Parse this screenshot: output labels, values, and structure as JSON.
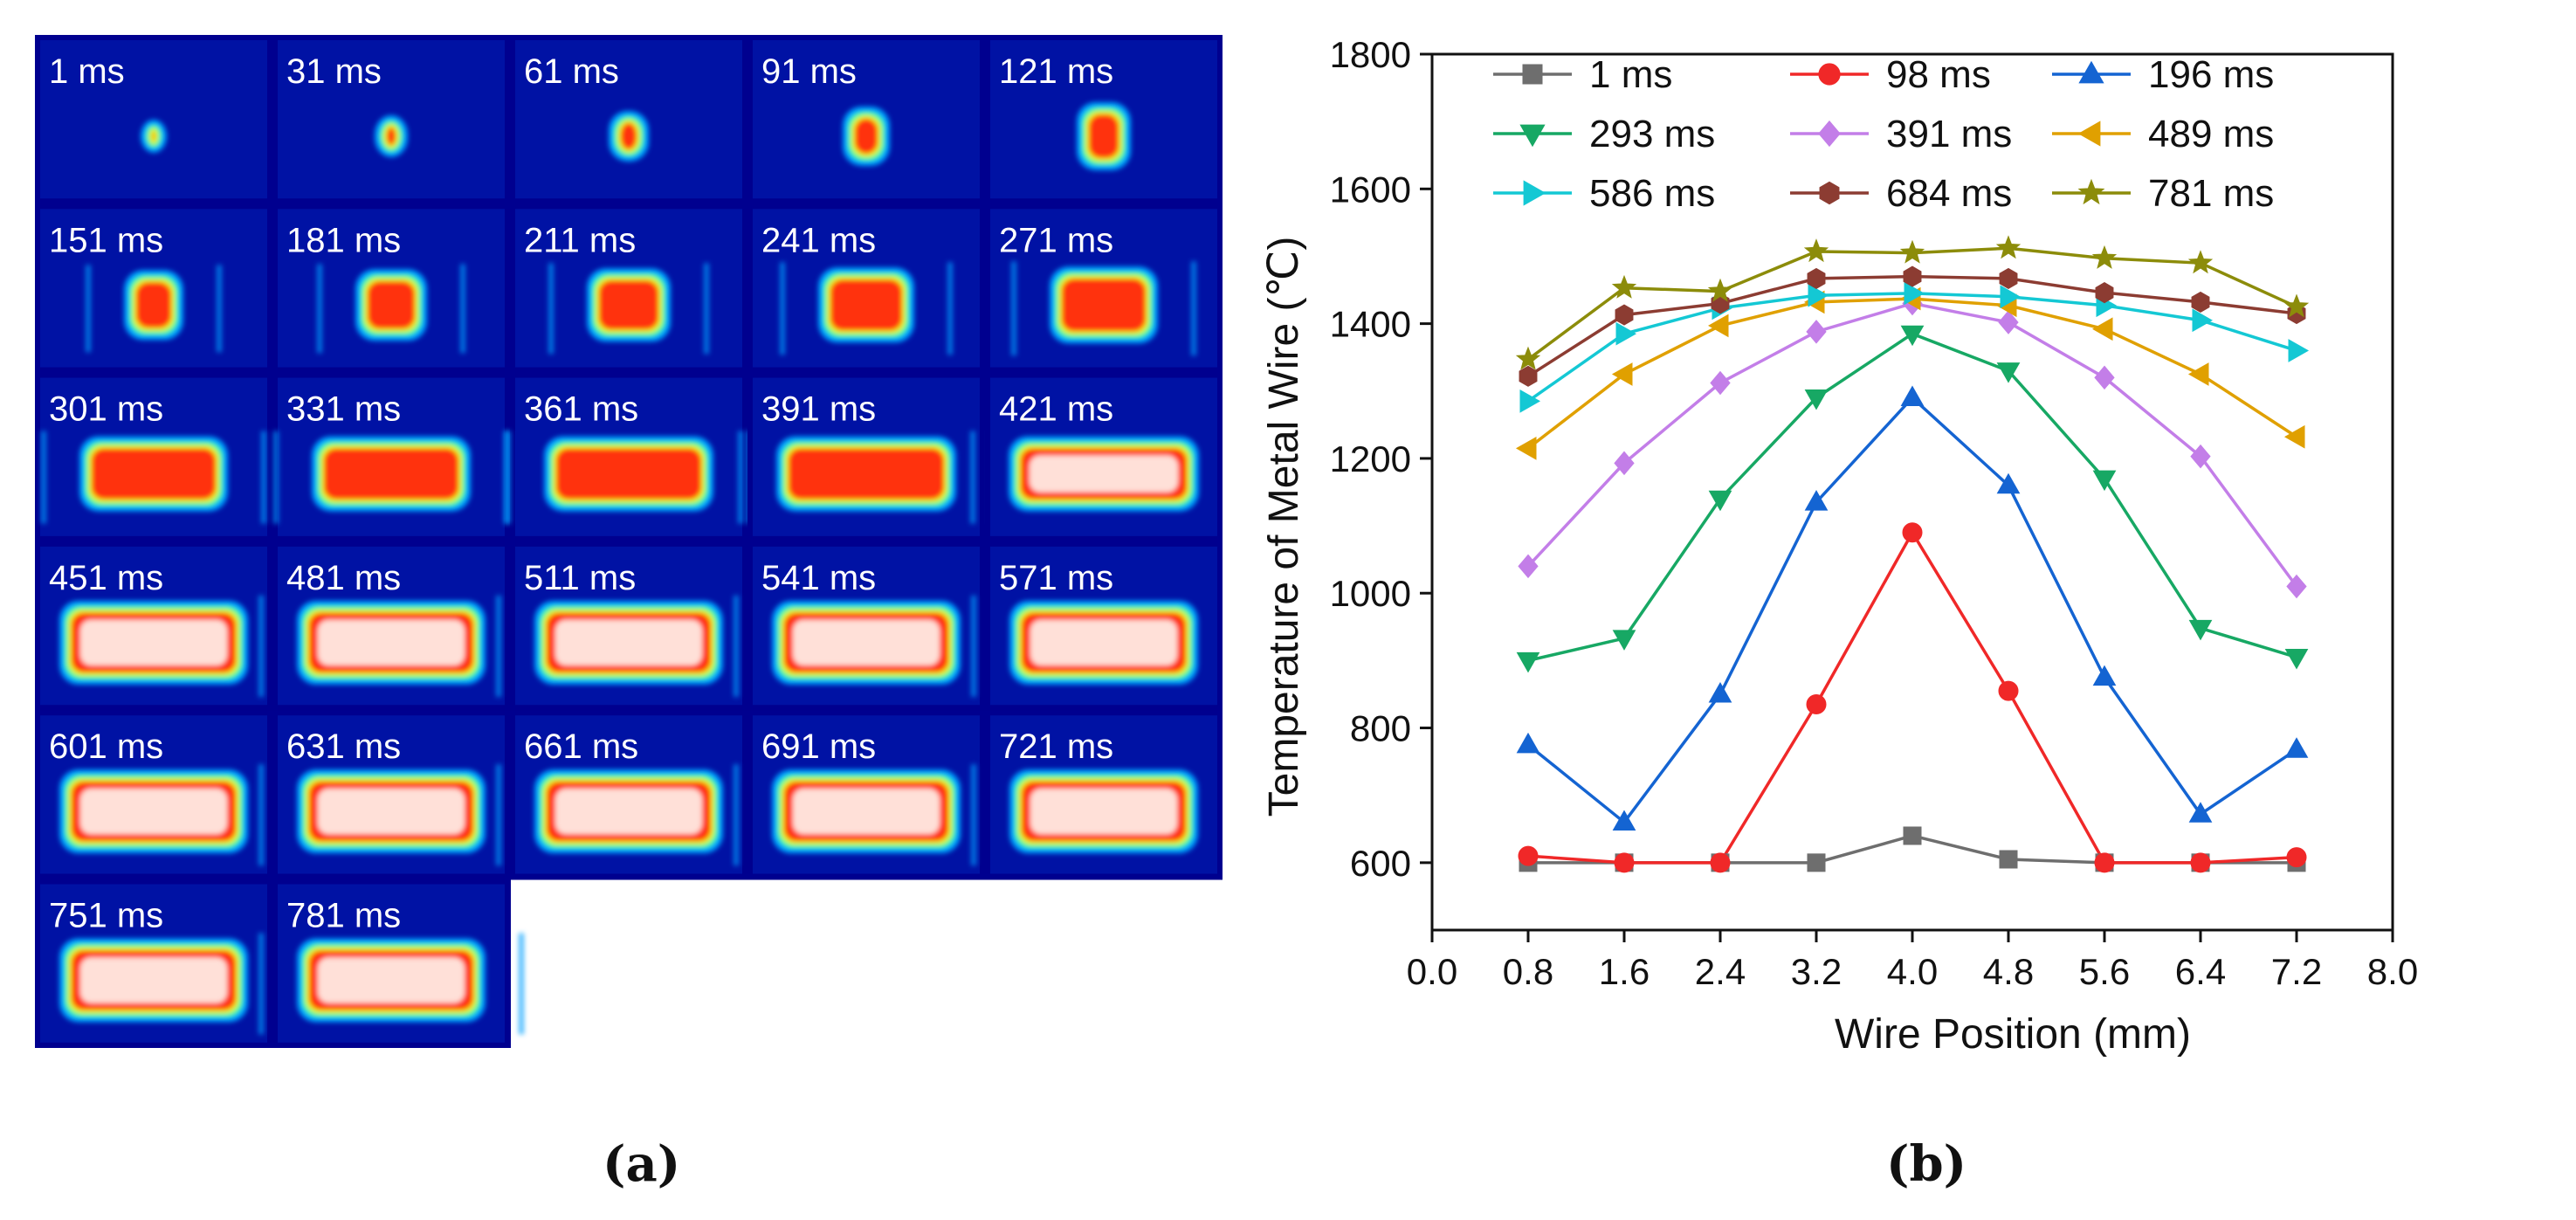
{
  "panel_a": {
    "label": "(a)",
    "frames": [
      "1 ms",
      "31 ms",
      "61 ms",
      "91 ms",
      "121 ms",
      "151 ms",
      "181 ms",
      "211 ms",
      "241 ms",
      "271 ms",
      "301 ms",
      "331 ms",
      "361 ms",
      "391 ms",
      "421 ms",
      "451 ms",
      "481 ms",
      "511 ms",
      "541 ms",
      "571 ms",
      "601 ms",
      "631 ms",
      "661 ms",
      "691 ms",
      "721 ms",
      "751 ms",
      "781 ms"
    ],
    "colormap": [
      "#00008f",
      "#0033cc",
      "#00a0ff",
      "#33ff99",
      "#e8f000",
      "#ff3010",
      "#ffe0d8"
    ]
  },
  "panel_b": {
    "label": "(b)"
  },
  "chart_data": {
    "type": "line",
    "title": "",
    "xlabel": "Wire Position (mm)",
    "ylabel": "Temperature of Metal Wire (℃)",
    "xlim": [
      0.0,
      8.0
    ],
    "ylim": [
      500,
      1800
    ],
    "xticks": [
      "0.0",
      "0.8",
      "1.6",
      "2.4",
      "3.2",
      "4.0",
      "4.8",
      "5.6",
      "6.4",
      "7.2",
      "8.0"
    ],
    "yticks": [
      "600",
      "800",
      "1000",
      "1200",
      "1400",
      "1600",
      "1800"
    ],
    "legend_position": "top",
    "x": [
      0.8,
      1.6,
      2.4,
      3.2,
      4.0,
      4.8,
      5.6,
      6.4,
      7.2
    ],
    "series": [
      {
        "name": "1 ms",
        "color": "#6e6e6e",
        "marker": "square",
        "values": [
          600,
          600,
          600,
          600,
          640,
          605,
          600,
          600,
          600
        ]
      },
      {
        "name": "98 ms",
        "color": "#f02828",
        "marker": "circle",
        "values": [
          610,
          600,
          600,
          835,
          1090,
          855,
          600,
          600,
          608
        ]
      },
      {
        "name": "196 ms",
        "color": "#1464d2",
        "marker": "triangle-up",
        "values": [
          775,
          660,
          850,
          1135,
          1290,
          1160,
          875,
          672,
          768
        ]
      },
      {
        "name": "293 ms",
        "color": "#17a864",
        "marker": "triangle-down",
        "values": [
          900,
          933,
          1140,
          1290,
          1385,
          1330,
          1170,
          948,
          905
        ]
      },
      {
        "name": "391 ms",
        "color": "#c37ee8",
        "marker": "diamond",
        "values": [
          1040,
          1193,
          1312,
          1388,
          1430,
          1402,
          1320,
          1203,
          1010
        ]
      },
      {
        "name": "489 ms",
        "color": "#e0a000",
        "marker": "triangle-left",
        "values": [
          1215,
          1325,
          1397,
          1432,
          1437,
          1427,
          1392,
          1325,
          1232
        ]
      },
      {
        "name": "586 ms",
        "color": "#14c8d4",
        "marker": "triangle-right",
        "values": [
          1285,
          1385,
          1423,
          1442,
          1445,
          1440,
          1427,
          1405,
          1360
        ]
      },
      {
        "name": "684 ms",
        "color": "#8c3c32",
        "marker": "hexagon",
        "values": [
          1322,
          1413,
          1430,
          1467,
          1470,
          1467,
          1446,
          1432,
          1415
        ]
      },
      {
        "name": "781 ms",
        "color": "#8c8c0a",
        "marker": "star",
        "values": [
          1347,
          1453,
          1448,
          1507,
          1505,
          1512,
          1497,
          1490,
          1425
        ]
      }
    ]
  }
}
